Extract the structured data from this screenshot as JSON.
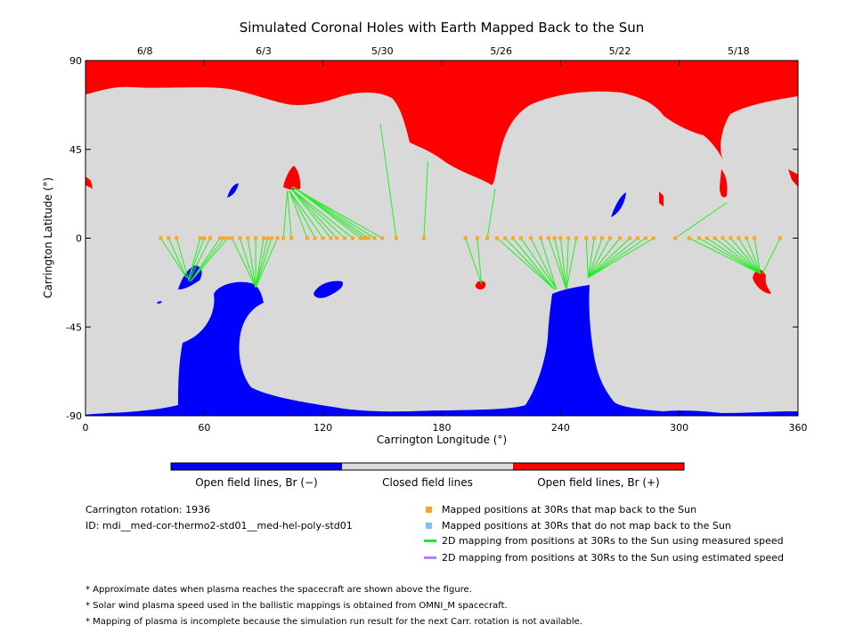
{
  "chart_data": {
    "type": "map",
    "title": "Simulated Coronal Holes with Earth Mapped Back to the Sun",
    "xlabel": "Carrington Longitude (°)",
    "ylabel": "Carrington Latitude (°)",
    "xlim": [
      0,
      360
    ],
    "ylim": [
      -90,
      90
    ],
    "x_ticks": [
      "0",
      "60",
      "120",
      "180",
      "240",
      "300",
      "360"
    ],
    "x_tick_values": [
      0,
      60,
      120,
      180,
      240,
      300,
      360
    ],
    "y_ticks": [
      "-90",
      "-45",
      "0",
      "45",
      "90"
    ],
    "y_tick_values": [
      -90,
      -45,
      0,
      45,
      90
    ],
    "top_dates": [
      {
        "label": "6/8",
        "lon": 30
      },
      {
        "label": "6/3",
        "lon": 90
      },
      {
        "label": "5/30",
        "lon": 150
      },
      {
        "label": "5/26",
        "lon": 210
      },
      {
        "label": "5/22",
        "lon": 270
      },
      {
        "label": "5/18",
        "lon": 330
      }
    ],
    "colors": {
      "open_negative": "#0000ff",
      "closed": "#d9d9d9",
      "open_positive": "#ff0000",
      "mapped_point": "#f5a623",
      "unmapped_point": "#7ec0ee",
      "measured_line": "#22ee22",
      "estimated_line": "#b77ff5"
    },
    "mappings": [
      {
        "lon": 38,
        "lat": 0,
        "src_lon": 51,
        "src_lat": -20
      },
      {
        "lon": 42,
        "lat": 0,
        "src_lon": 51,
        "src_lat": -20
      },
      {
        "lon": 46,
        "lat": 0,
        "src_lon": 52,
        "src_lat": -21
      },
      {
        "lon": 58,
        "lat": 0,
        "src_lon": 52,
        "src_lat": -21
      },
      {
        "lon": 60,
        "lat": 0,
        "src_lon": 52,
        "src_lat": -21
      },
      {
        "lon": 63,
        "lat": 0,
        "src_lon": 52,
        "src_lat": -22
      },
      {
        "lon": 68,
        "lat": 0,
        "src_lon": 53,
        "src_lat": -22
      },
      {
        "lon": 70,
        "lat": 0,
        "src_lon": 53,
        "src_lat": -22
      },
      {
        "lon": 72,
        "lat": 0,
        "src_lon": 53,
        "src_lat": -22
      },
      {
        "lon": 74,
        "lat": 0,
        "src_lon": 86,
        "src_lat": -25
      },
      {
        "lon": 78,
        "lat": 0,
        "src_lon": 86,
        "src_lat": -25
      },
      {
        "lon": 82,
        "lat": 0,
        "src_lon": 86,
        "src_lat": -25
      },
      {
        "lon": 86,
        "lat": 0,
        "src_lon": 86,
        "src_lat": -25
      },
      {
        "lon": 90,
        "lat": 0,
        "src_lon": 86,
        "src_lat": -25
      },
      {
        "lon": 92,
        "lat": 0,
        "src_lon": 86,
        "src_lat": -25
      },
      {
        "lon": 94,
        "lat": 0,
        "src_lon": 86,
        "src_lat": -25
      },
      {
        "lon": 97,
        "lat": 0,
        "src_lon": 86,
        "src_lat": -25
      },
      {
        "lon": 100,
        "lat": 0,
        "src_lon": 102,
        "src_lat": 24
      },
      {
        "lon": 104,
        "lat": 0,
        "src_lon": 102,
        "src_lat": 24
      },
      {
        "lon": 112,
        "lat": 0,
        "src_lon": 103,
        "src_lat": 24
      },
      {
        "lon": 116,
        "lat": 0,
        "src_lon": 103,
        "src_lat": 24
      },
      {
        "lon": 120,
        "lat": 0,
        "src_lon": 103,
        "src_lat": 24
      },
      {
        "lon": 124,
        "lat": 0,
        "src_lon": 104,
        "src_lat": 25
      },
      {
        "lon": 127,
        "lat": 0,
        "src_lon": 104,
        "src_lat": 25
      },
      {
        "lon": 131,
        "lat": 0,
        "src_lon": 104,
        "src_lat": 25
      },
      {
        "lon": 135,
        "lat": 0,
        "src_lon": 104,
        "src_lat": 25
      },
      {
        "lon": 139,
        "lat": 0,
        "src_lon": 105,
        "src_lat": 26
      },
      {
        "lon": 141,
        "lat": 0,
        "src_lon": 105,
        "src_lat": 26
      },
      {
        "lon": 143,
        "lat": 0,
        "src_lon": 105,
        "src_lat": 26
      },
      {
        "lon": 146,
        "lat": 0,
        "src_lon": 105,
        "src_lat": 26
      },
      {
        "lon": 150,
        "lat": 0,
        "src_lon": 104,
        "src_lat": 26
      },
      {
        "lon": 157,
        "lat": 0,
        "src_lon": 149,
        "src_lat": 58
      },
      {
        "lon": 171,
        "lat": 0,
        "src_lon": 173,
        "src_lat": 39
      },
      {
        "lon": 192,
        "lat": 0,
        "src_lon": 200,
        "src_lat": -23
      },
      {
        "lon": 198,
        "lat": 0,
        "src_lon": 200,
        "src_lat": -23
      },
      {
        "lon": 203,
        "lat": 0,
        "src_lon": 207,
        "src_lat": 25
      },
      {
        "lon": 208,
        "lat": 0,
        "src_lon": 237,
        "src_lat": -26
      },
      {
        "lon": 212,
        "lat": 0,
        "src_lon": 237,
        "src_lat": -26
      },
      {
        "lon": 216,
        "lat": 0,
        "src_lon": 237,
        "src_lat": -26
      },
      {
        "lon": 220,
        "lat": 0,
        "src_lon": 238,
        "src_lat": -26
      },
      {
        "lon": 225,
        "lat": 0,
        "src_lon": 238,
        "src_lat": -26
      },
      {
        "lon": 230,
        "lat": 0,
        "src_lon": 238,
        "src_lat": -26
      },
      {
        "lon": 234,
        "lat": 0,
        "src_lon": 243,
        "src_lat": -26
      },
      {
        "lon": 237,
        "lat": 0,
        "src_lon": 243,
        "src_lat": -26
      },
      {
        "lon": 240,
        "lat": 0,
        "src_lon": 243,
        "src_lat": -26
      },
      {
        "lon": 244,
        "lat": 0,
        "src_lon": 243,
        "src_lat": -26
      },
      {
        "lon": 248,
        "lat": 0,
        "src_lon": 243,
        "src_lat": -26
      },
      {
        "lon": 253,
        "lat": 0,
        "src_lon": 254,
        "src_lat": -20
      },
      {
        "lon": 257,
        "lat": 0,
        "src_lon": 254,
        "src_lat": -20
      },
      {
        "lon": 261,
        "lat": 0,
        "src_lon": 254,
        "src_lat": -20
      },
      {
        "lon": 265,
        "lat": 0,
        "src_lon": 254,
        "src_lat": -20
      },
      {
        "lon": 270,
        "lat": 0,
        "src_lon": 254,
        "src_lat": -20
      },
      {
        "lon": 275,
        "lat": 0,
        "src_lon": 254,
        "src_lat": -20
      },
      {
        "lon": 279,
        "lat": 0,
        "src_lon": 254,
        "src_lat": -20
      },
      {
        "lon": 283,
        "lat": 0,
        "src_lon": 254,
        "src_lat": -20
      },
      {
        "lon": 287,
        "lat": 0,
        "src_lon": 254,
        "src_lat": -20
      },
      {
        "lon": 298,
        "lat": 0,
        "src_lon": 324,
        "src_lat": 18
      },
      {
        "lon": 305,
        "lat": 0,
        "src_lon": 341,
        "src_lat": -18
      },
      {
        "lon": 310,
        "lat": 0,
        "src_lon": 341,
        "src_lat": -18
      },
      {
        "lon": 314,
        "lat": 0,
        "src_lon": 341,
        "src_lat": -18
      },
      {
        "lon": 318,
        "lat": 0,
        "src_lon": 341,
        "src_lat": -18
      },
      {
        "lon": 322,
        "lat": 0,
        "src_lon": 341,
        "src_lat": -18
      },
      {
        "lon": 326,
        "lat": 0,
        "src_lon": 341,
        "src_lat": -18
      },
      {
        "lon": 330,
        "lat": 0,
        "src_lon": 341,
        "src_lat": -18
      },
      {
        "lon": 334,
        "lat": 0,
        "src_lon": 341,
        "src_lat": -18
      },
      {
        "lon": 338,
        "lat": 0,
        "src_lon": 341,
        "src_lat": -18
      },
      {
        "lon": 351,
        "lat": 0,
        "src_lon": 342,
        "src_lat": -18
      }
    ]
  },
  "colorbar": {
    "labels": [
      "Open field lines, Br (−)",
      "Closed field lines",
      "Open field lines, Br (+)"
    ]
  },
  "info": {
    "rotation": "Carrington rotation: 1936",
    "id": "ID: mdi__med-cor-thermo2-std01__med-hel-poly-std01"
  },
  "legend": {
    "mapped": "Mapped positions at 30Rs that map back to the Sun",
    "unmapped": "Mapped positions at 30Rs that do not map back to the Sun",
    "measured": "2D mapping from positions at 30Rs to the Sun using measured speed",
    "estimated": "2D mapping from positions at 30Rs to the Sun using estimated speed"
  },
  "notes": [
    "* Approximate dates when plasma reaches the spacecraft are shown above the figure.",
    "* Solar wind plasma speed used in the ballistic mappings is obtained from OMNI_M spacecraft.",
    "* Mapping of plasma is incomplete because the simulation run result for the next Carr. rotation is not available."
  ]
}
